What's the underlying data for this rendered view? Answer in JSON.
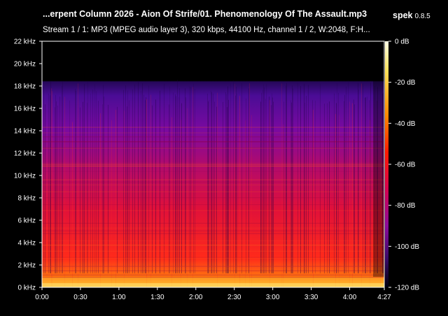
{
  "header": {
    "title": "...erpent Column 2026 - Aion Of Strife/01. Phenomenology Of The Assault.mp3",
    "app_name": "spek",
    "app_version": "0.8.5",
    "stream_info": "Stream 1 / 1: MP3 (MPEG audio layer 3), 320 kbps, 44100 Hz, channel 1 / 2, W:2048, F:H..."
  },
  "spectrogram": {
    "freq_ticks": [
      "22 kHz",
      "20 kHz",
      "18 kHz",
      "16 kHz",
      "14 kHz",
      "12 kHz",
      "10 kHz",
      "8 kHz",
      "6 kHz",
      "4 kHz",
      "2 kHz",
      "0 kHz"
    ],
    "time_ticks": [
      "0:00",
      "0:30",
      "1:00",
      "1:30",
      "2:00",
      "2:30",
      "3:00",
      "3:30",
      "4:00",
      "4:27"
    ],
    "db_ticks": [
      "0 dB",
      "-20 dB",
      "-40 dB",
      "-60 dB",
      "-80 dB",
      "-100 dB",
      "-120 dB"
    ],
    "freq_cutoff_khz": 18.5,
    "duration_s": 267,
    "colors": {
      "background": "#000000",
      "axis": "#ffffff",
      "low": "#000000",
      "mid": "#ff0000",
      "high": "#ffffcc"
    }
  }
}
